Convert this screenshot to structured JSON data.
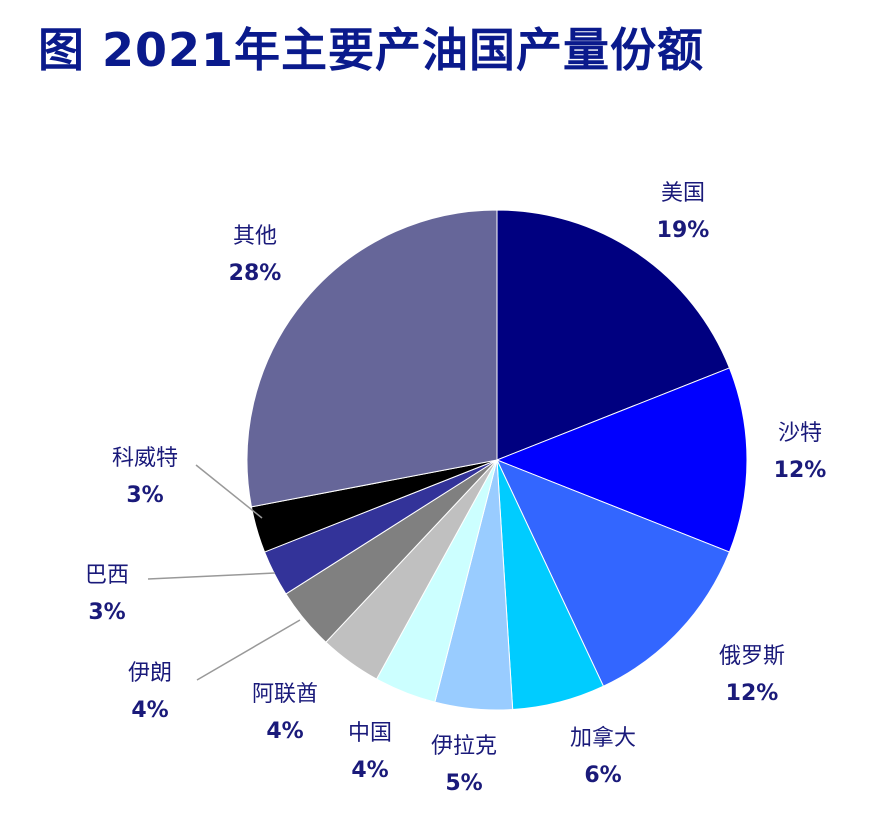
{
  "chart_data": {
    "type": "pie",
    "title": "图 2021年主要产油国产量份额",
    "slices": [
      {
        "label": "美国",
        "pct_label": "19%",
        "value": 19,
        "color": "#000080"
      },
      {
        "label": "沙特",
        "pct_label": "12%",
        "value": 12,
        "color": "#0000ff"
      },
      {
        "label": "俄罗斯",
        "pct_label": "12%",
        "value": 12,
        "color": "#3366ff"
      },
      {
        "label": "加拿大",
        "pct_label": "6%",
        "value": 6,
        "color": "#00ccff"
      },
      {
        "label": "伊拉克",
        "pct_label": "5%",
        "value": 5,
        "color": "#99ccff"
      },
      {
        "label": "中国",
        "pct_label": "4%",
        "value": 4,
        "color": "#ccffff"
      },
      {
        "label": "阿联酋",
        "pct_label": "4%",
        "value": 4,
        "color": "#c0c0c0"
      },
      {
        "label": "伊朗",
        "pct_label": "4%",
        "value": 4,
        "color": "#808080"
      },
      {
        "label": "巴西",
        "pct_label": "3%",
        "value": 3,
        "color": "#333399"
      },
      {
        "label": "科威特",
        "pct_label": "3%",
        "value": 3,
        "color": "#000000"
      },
      {
        "label": "其他",
        "pct_label": "28%",
        "value": 28,
        "color": "#666699"
      }
    ]
  }
}
